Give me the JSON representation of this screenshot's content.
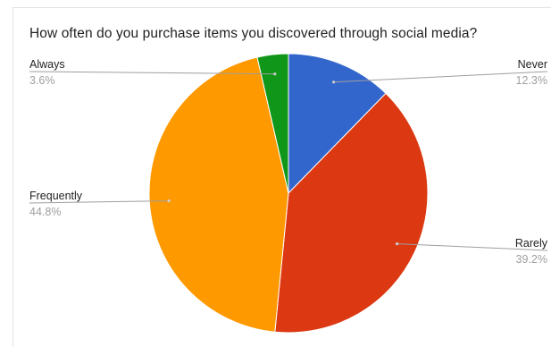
{
  "chart_data": {
    "type": "pie",
    "title": "How often do you purchase items you discovered through social media?",
    "slices": [
      {
        "label": "Never",
        "value": 12.3,
        "display": "12.3%",
        "color": "#3366cc",
        "side": "right"
      },
      {
        "label": "Rarely",
        "value": 39.2,
        "display": "39.2%",
        "color": "#dc3912",
        "side": "right"
      },
      {
        "label": "Frequently",
        "value": 44.8,
        "display": "44.8%",
        "color": "#ff9900",
        "side": "left"
      },
      {
        "label": "Always",
        "value": 3.6,
        "display": "3.6%",
        "color": "#109618",
        "side": "left"
      }
    ],
    "start_angle_deg": 0,
    "direction": "clockwise",
    "legend": "labeled-leader-lines"
  }
}
